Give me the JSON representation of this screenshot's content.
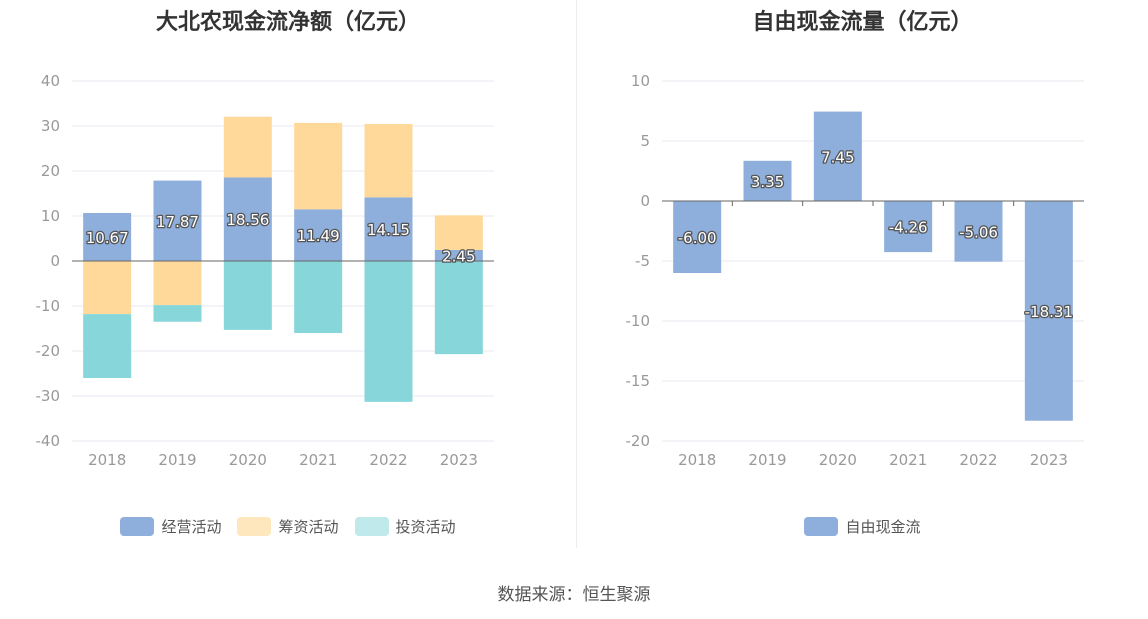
{
  "source": "数据来源：恒生聚源",
  "colors": {
    "operating": "#8eaedb",
    "financing": "#ffd999",
    "investing": "#86d6da",
    "fcf": "#8eaedb",
    "grid": "#e8eaf2",
    "axis": "#666666"
  },
  "chart_data": [
    {
      "type": "bar",
      "stacked": true,
      "title": "大北农现金流净额（亿元）",
      "categories": [
        "2018",
        "2019",
        "2020",
        "2021",
        "2022",
        "2023"
      ],
      "ylim": [
        -40,
        40
      ],
      "yticks": [
        40,
        30,
        20,
        10,
        0,
        -10,
        -20,
        -30,
        -40
      ],
      "grid": true,
      "legend_position": "bottom",
      "series": [
        {
          "name": "经营活动",
          "values": [
            10.67,
            17.87,
            18.56,
            11.49,
            14.15,
            2.45
          ]
        },
        {
          "name": "筹资活动",
          "values": [
            -11.8,
            -9.8,
            13.5,
            19.2,
            16.3,
            7.7
          ]
        },
        {
          "name": "投资活动",
          "values": [
            -14.2,
            -3.7,
            -15.3,
            -16.0,
            -31.3,
            -20.7
          ]
        }
      ],
      "data_labels": [
        "10.67",
        "17.87",
        "18.56",
        "11.49",
        "14.15",
        "2.45"
      ]
    },
    {
      "type": "bar",
      "title": "自由现金流量（亿元）",
      "categories": [
        "2018",
        "2019",
        "2020",
        "2021",
        "2022",
        "2023"
      ],
      "ylim": [
        -20,
        10
      ],
      "yticks": [
        10,
        5,
        0,
        -5,
        -10,
        -15,
        -20
      ],
      "grid": true,
      "legend_position": "bottom",
      "series": [
        {
          "name": "自由现金流",
          "values": [
            -6.0,
            3.35,
            7.45,
            -4.26,
            -5.06,
            -18.31
          ]
        }
      ],
      "data_labels": [
        "-6.00",
        "3.35",
        "7.45",
        "-4.26",
        "-5.06",
        "-18.31"
      ]
    }
  ]
}
